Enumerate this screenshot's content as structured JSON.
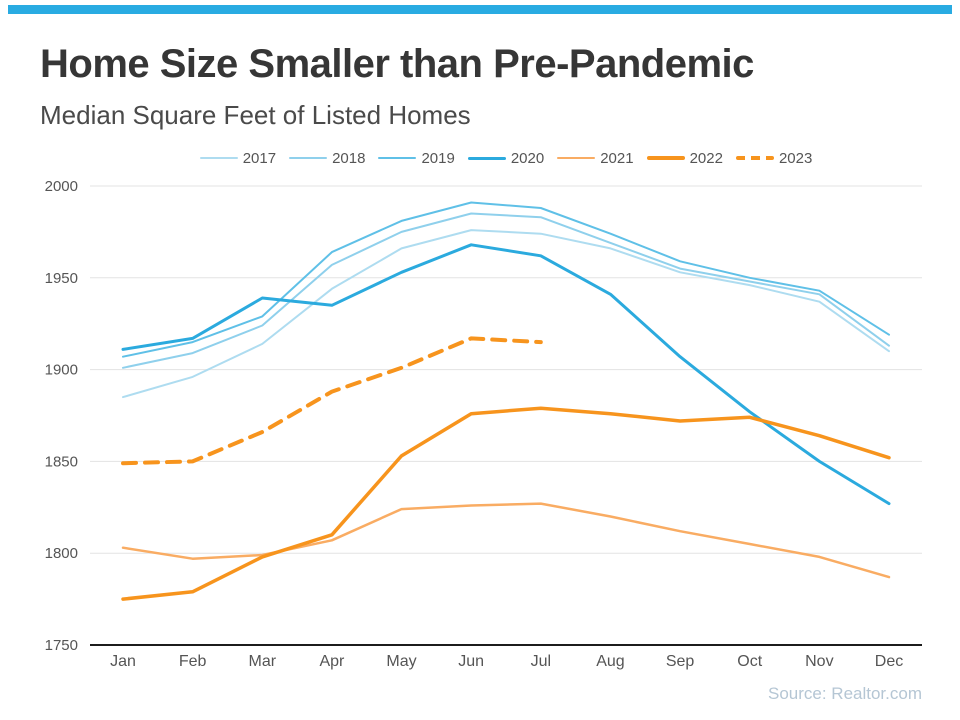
{
  "theme": {
    "accent_bar": "#29abe2",
    "grid_color": "#e3e3e3",
    "axis_color": "#1c1c1c",
    "label_color": "#555555"
  },
  "page": {
    "source": "Source: Realtor.com"
  },
  "chart_data": {
    "type": "line",
    "title": "Home Size Smaller than Pre-Pandemic",
    "subtitle": "Median Square Feet of Listed Homes",
    "xlabel": "",
    "ylabel": "",
    "categories": [
      "Jan",
      "Feb",
      "Mar",
      "Apr",
      "May",
      "Jun",
      "Jul",
      "Aug",
      "Sep",
      "Oct",
      "Nov",
      "Dec"
    ],
    "ylim": [
      1750,
      2000
    ],
    "yticks": [
      1750,
      1800,
      1850,
      1900,
      1950,
      2000
    ],
    "grid": true,
    "legend_position": "top",
    "source": "Source: Realtor.com",
    "series": [
      {
        "name": "2017",
        "color": "#aedcf0",
        "width": 2,
        "dash": null,
        "values": [
          1885,
          1896,
          1914,
          1944,
          1966,
          1976,
          1974,
          1966,
          1953,
          1946,
          1937,
          1910
        ]
      },
      {
        "name": "2018",
        "color": "#8fd0ec",
        "width": 2,
        "dash": null,
        "values": [
          1901,
          1909,
          1924,
          1957,
          1975,
          1985,
          1983,
          1969,
          1955,
          1948,
          1941,
          1913
        ]
      },
      {
        "name": "2019",
        "color": "#5fc0e7",
        "width": 2,
        "dash": null,
        "values": [
          1907,
          1915,
          1929,
          1964,
          1981,
          1991,
          1988,
          1974,
          1959,
          1950,
          1943,
          1919
        ]
      },
      {
        "name": "2020",
        "color": "#2baade",
        "width": 3,
        "dash": null,
        "values": [
          1911,
          1917,
          1939,
          1935,
          1953,
          1968,
          1962,
          1941,
          1907,
          1877,
          1850,
          1827
        ]
      },
      {
        "name": "2021",
        "color": "#f9ac63",
        "width": 2.5,
        "dash": null,
        "values": [
          1803,
          1797,
          1799,
          1807,
          1824,
          1826,
          1827,
          1820,
          1812,
          1805,
          1798,
          1787
        ]
      },
      {
        "name": "2022",
        "color": "#f7941d",
        "width": 3.5,
        "dash": null,
        "values": [
          1775,
          1779,
          1798,
          1810,
          1853,
          1876,
          1879,
          1876,
          1872,
          1874,
          1864,
          1852
        ]
      },
      {
        "name": "2023",
        "color": "#f7941d",
        "width": 4,
        "dash": "13 9",
        "values": [
          1849,
          1850,
          1866,
          1888,
          1901,
          1917,
          1915,
          null,
          null,
          null,
          null,
          null
        ]
      }
    ]
  }
}
